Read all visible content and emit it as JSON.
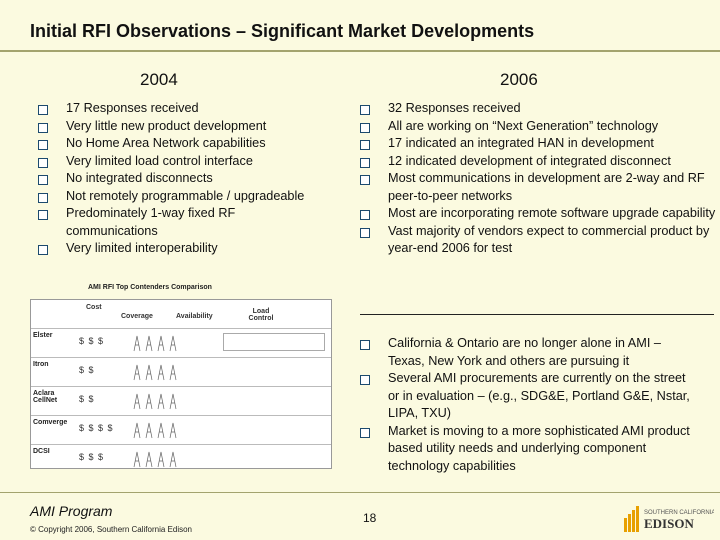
{
  "title": "Initial RFI Observations – Significant Market Developments",
  "left": {
    "year": "2004",
    "bullets": [
      "17 Responses received",
      "Very little new product development",
      "No Home Area Network capabilities",
      "Very limited load control interface",
      "No integrated disconnects",
      "Not remotely programmable / upgradeable",
      "Predominately 1-way fixed RF communications",
      "Very limited interoperability"
    ]
  },
  "right": {
    "year": "2006",
    "bullets": [
      "32 Responses received",
      "All are working on “Next Generation” technology",
      "17 indicated an integrated HAN in development",
      "12 indicated development of integrated disconnect",
      "Most communications in development are 2-way and RF peer-to-peer networks",
      "Most are incorporating remote software upgrade capability",
      "Vast majority of vendors expect to commercial product by year-end 2006 for test"
    ],
    "bullets2": [
      "California & Ontario are no longer alone in AMI – Texas, New York and others are pursuing it",
      "Several AMI procurements are currently on the street or in evaluation – (e.g., SDG&E, Portland G&E, Nstar, LIPA, TXU)",
      "Market is moving to a more sophisticated AMI product based utility needs and underlying component technology capabilities"
    ]
  },
  "comparison": {
    "title": "AMI RFI Top Contenders Comparison",
    "headers": {
      "cost": "Cost",
      "coverage": "Coverage",
      "availability": "Availability",
      "load_control": "Load Control"
    },
    "rows": [
      {
        "vendor": "Elster",
        "cost": "$ $ $"
      },
      {
        "vendor": "Itron",
        "cost": "$ $"
      },
      {
        "vendor": "Aclara CellNet",
        "cost": "$ $"
      },
      {
        "vendor": "Comverge",
        "cost": "$ $ $ $"
      },
      {
        "vendor": "DCSI",
        "cost": "$ $ $"
      }
    ]
  },
  "footer": {
    "program": "AMI Program",
    "copyright": "© Copyright 2006, Southern California Edison",
    "page": "18"
  },
  "logo": {
    "line1": "SOUTHERN CALIFORNIA",
    "line2": "EDISON",
    "accent": "#e8a000"
  }
}
